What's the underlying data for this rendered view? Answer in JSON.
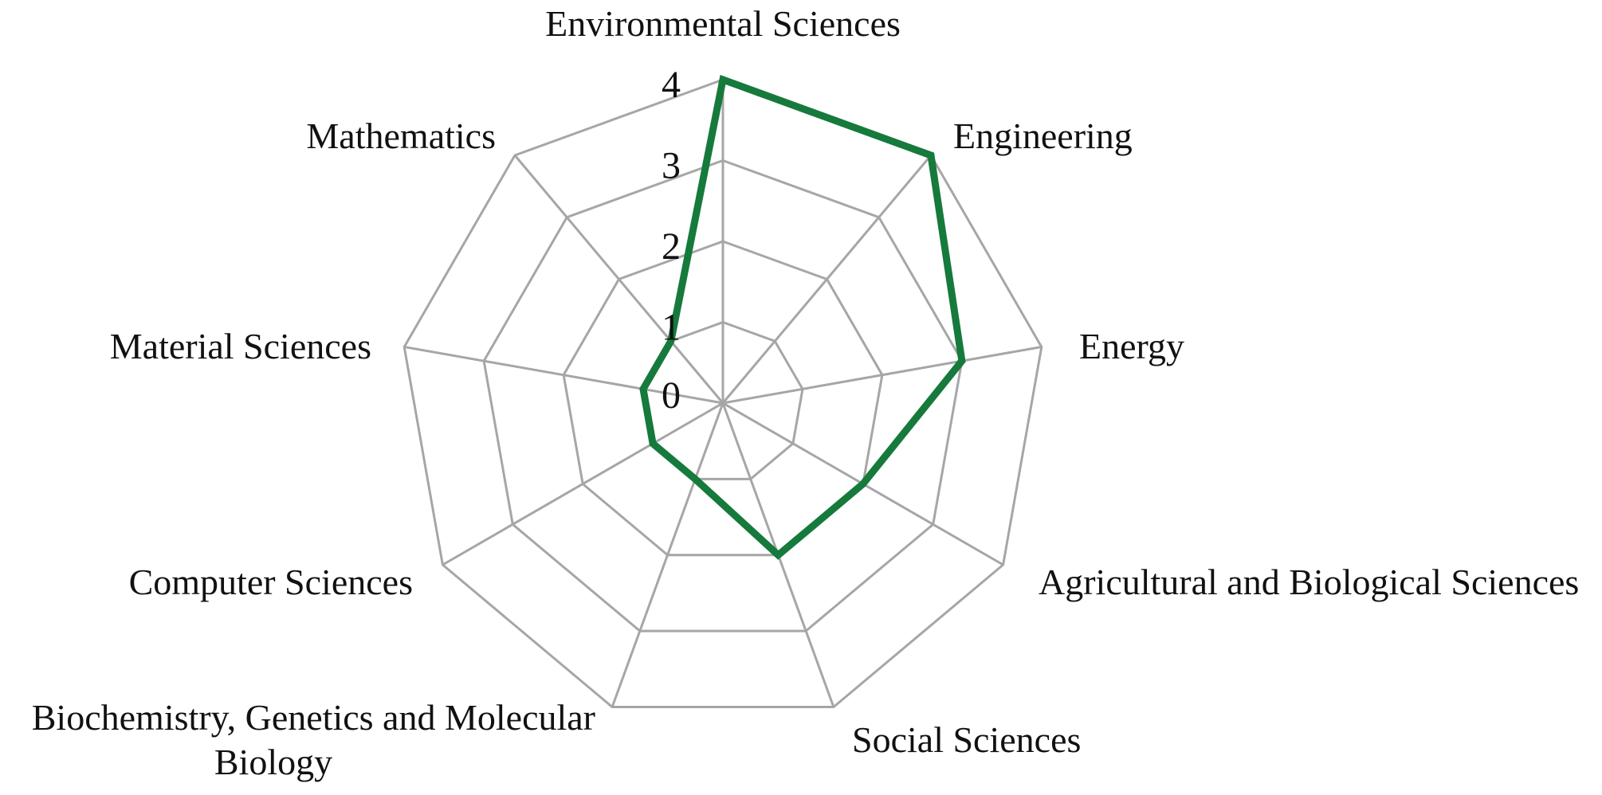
{
  "chart_data": {
    "type": "radar",
    "categories": [
      "Environmental Sciences",
      "Engineering",
      "Energy",
      "Agricultural and Biological Sciences",
      "Social Sciences",
      [
        "Biochemistry, Genetics and Molecular",
        "Biology"
      ],
      "Computer Sciences",
      "Material Sciences",
      "Mathematics"
    ],
    "series": [
      {
        "values": [
          4,
          4,
          3,
          2,
          2,
          1,
          1,
          1,
          1
        ],
        "color": "#157a3c"
      }
    ],
    "rlim": [
      0,
      4
    ],
    "ticks": [
      0,
      1,
      2,
      3,
      4
    ],
    "grid": true,
    "grid_color": "#a6a6a6",
    "legend": "none"
  }
}
